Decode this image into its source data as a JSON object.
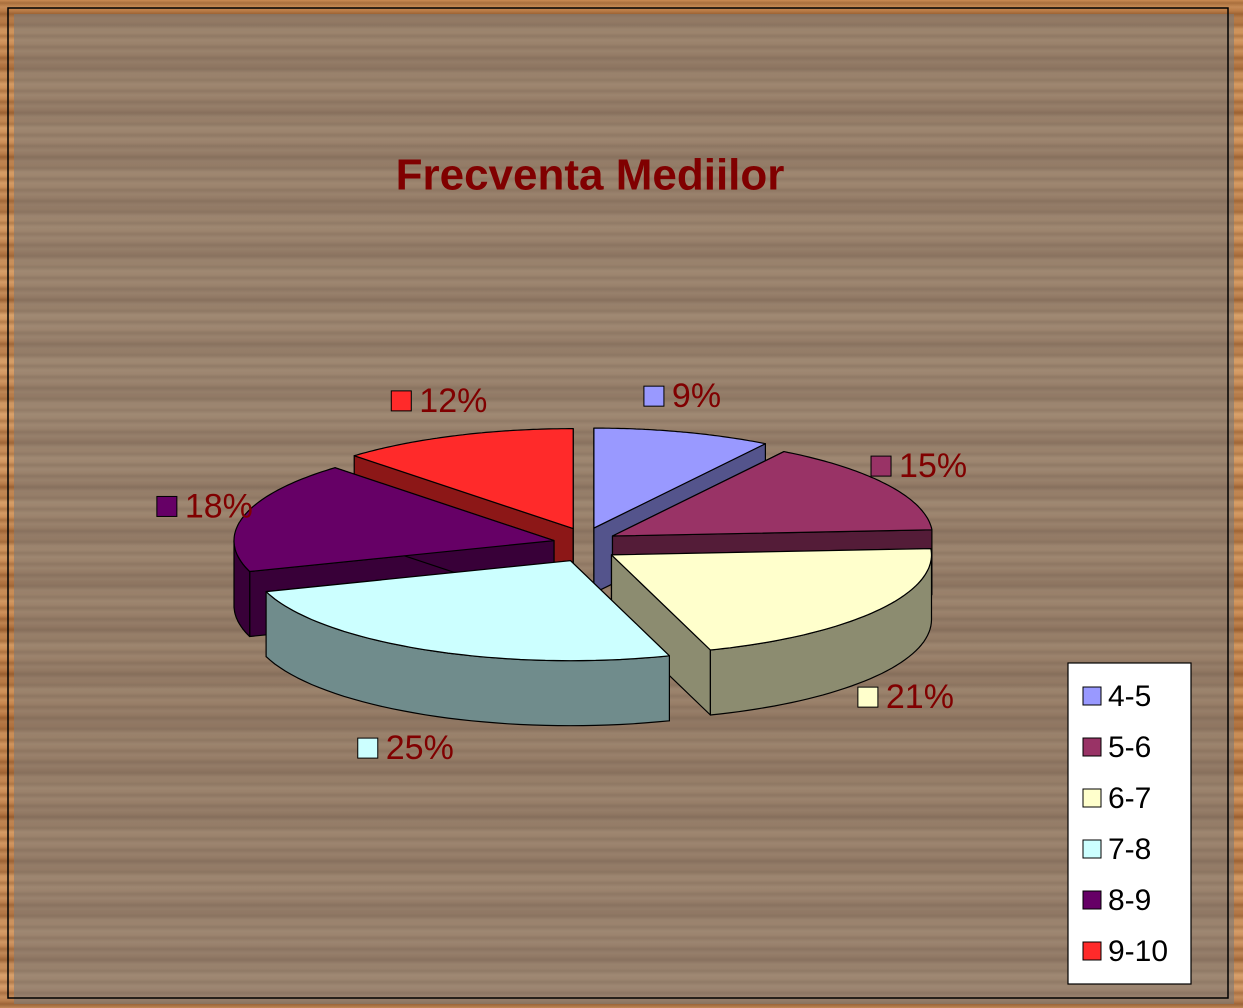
{
  "chart_data": {
    "type": "pie",
    "title": "Frecventa Mediilor",
    "categories": [
      "4-5",
      "5-6",
      "6-7",
      "7-8",
      "8-9",
      "9-10"
    ],
    "values": [
      9,
      15,
      21,
      25,
      18,
      12
    ],
    "value_labels": [
      "9%",
      "15%",
      "21%",
      "25%",
      "18%",
      "12%"
    ],
    "colors": [
      "#9999ff",
      "#993366",
      "#ffffcc",
      "#ccffff",
      "#660066",
      "#ff2a2a"
    ],
    "legend": "right"
  }
}
